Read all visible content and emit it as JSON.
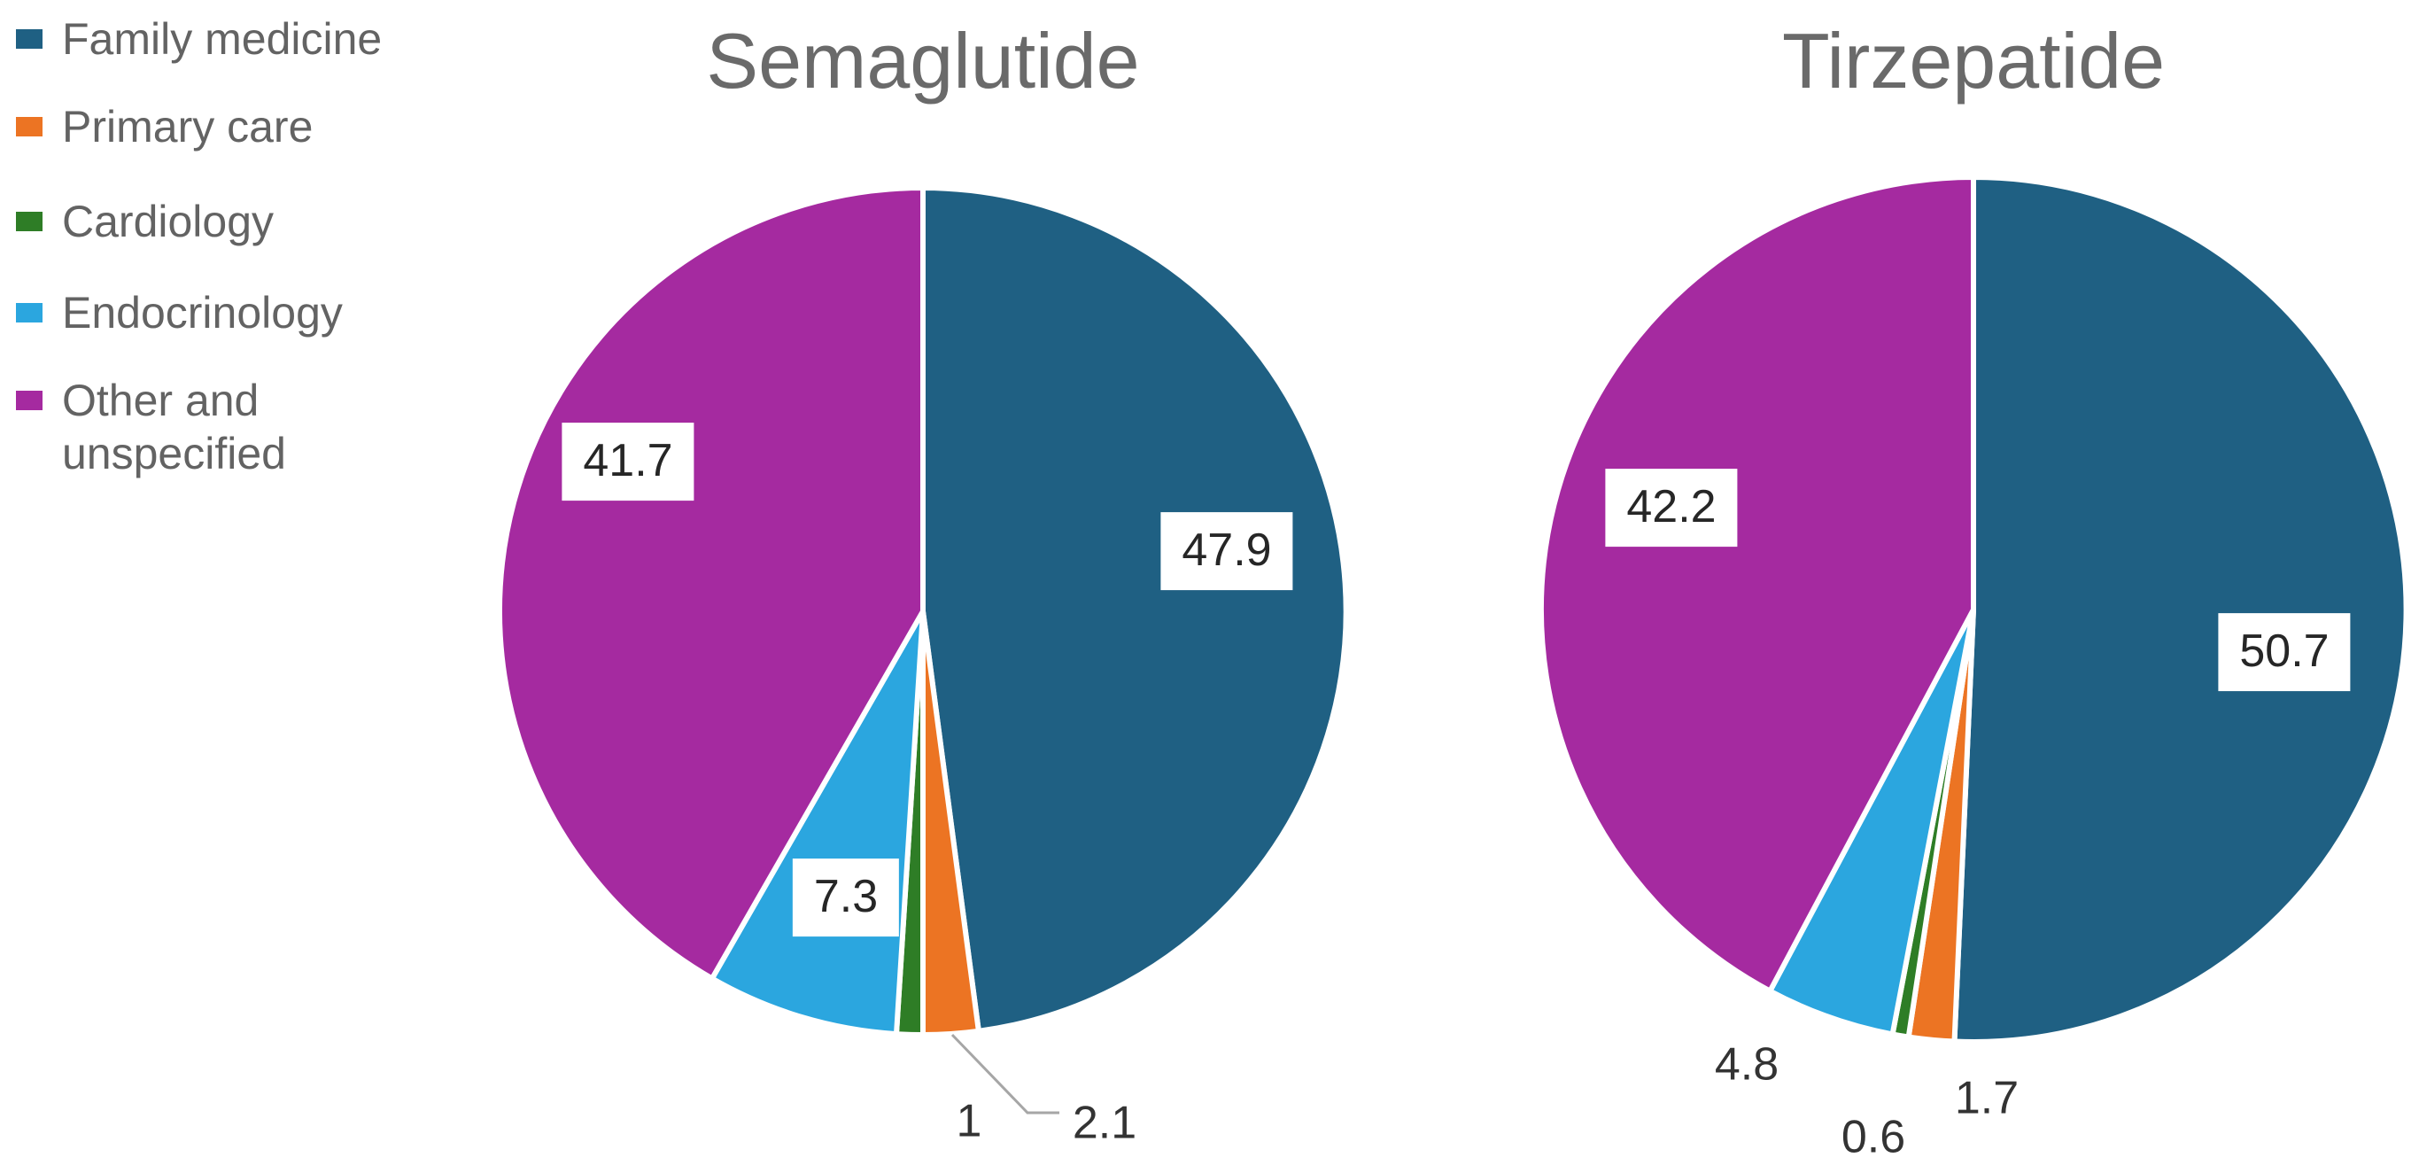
{
  "legend": {
    "items": [
      {
        "label": "Family medicine",
        "color": "#1F6083"
      },
      {
        "label": "Primary care",
        "color": "#EC7423"
      },
      {
        "label": "Cardiology",
        "color": "#2E7D26"
      },
      {
        "label": "Endocrinology",
        "color": "#2BA6DF"
      },
      {
        "label": "Other and unspecified",
        "color": "#A52AA0"
      }
    ]
  },
  "chart_data": [
    {
      "type": "pie",
      "title": "Semaglutide",
      "categories": [
        "Family medicine",
        "Primary care",
        "Cardiology",
        "Endocrinology",
        "Other and unspecified"
      ],
      "values": [
        47.9,
        2.1,
        1,
        7.3,
        41.7
      ],
      "data_labels": [
        "47.9",
        "2.1",
        "1",
        "7.3",
        "41.7"
      ],
      "colors": [
        "#1F6083",
        "#EC7423",
        "#2E7D26",
        "#2BA6DF",
        "#A52AA0"
      ],
      "start_angle_deg": 0,
      "direction": "clockwise",
      "units": "percent",
      "slice_border_color": "#FFFFFF",
      "leader_line_color": "#A6A6A6",
      "legend_position": "left"
    },
    {
      "type": "pie",
      "title": "Tirzepatide",
      "categories": [
        "Family medicine",
        "Primary care",
        "Cardiology",
        "Endocrinology",
        "Other and unspecified"
      ],
      "values": [
        50.7,
        1.7,
        0.6,
        4.8,
        42.2
      ],
      "data_labels": [
        "50.7",
        "1.7",
        "0.6",
        "4.8",
        "42.2"
      ],
      "colors": [
        "#1F6083",
        "#EC7423",
        "#2E7D26",
        "#2BA6DF",
        "#A52AA0"
      ],
      "start_angle_deg": 0,
      "direction": "clockwise",
      "units": "percent",
      "slice_border_color": "#FFFFFF",
      "leader_line_color": "#A6A6A6",
      "legend_position": "left"
    }
  ]
}
